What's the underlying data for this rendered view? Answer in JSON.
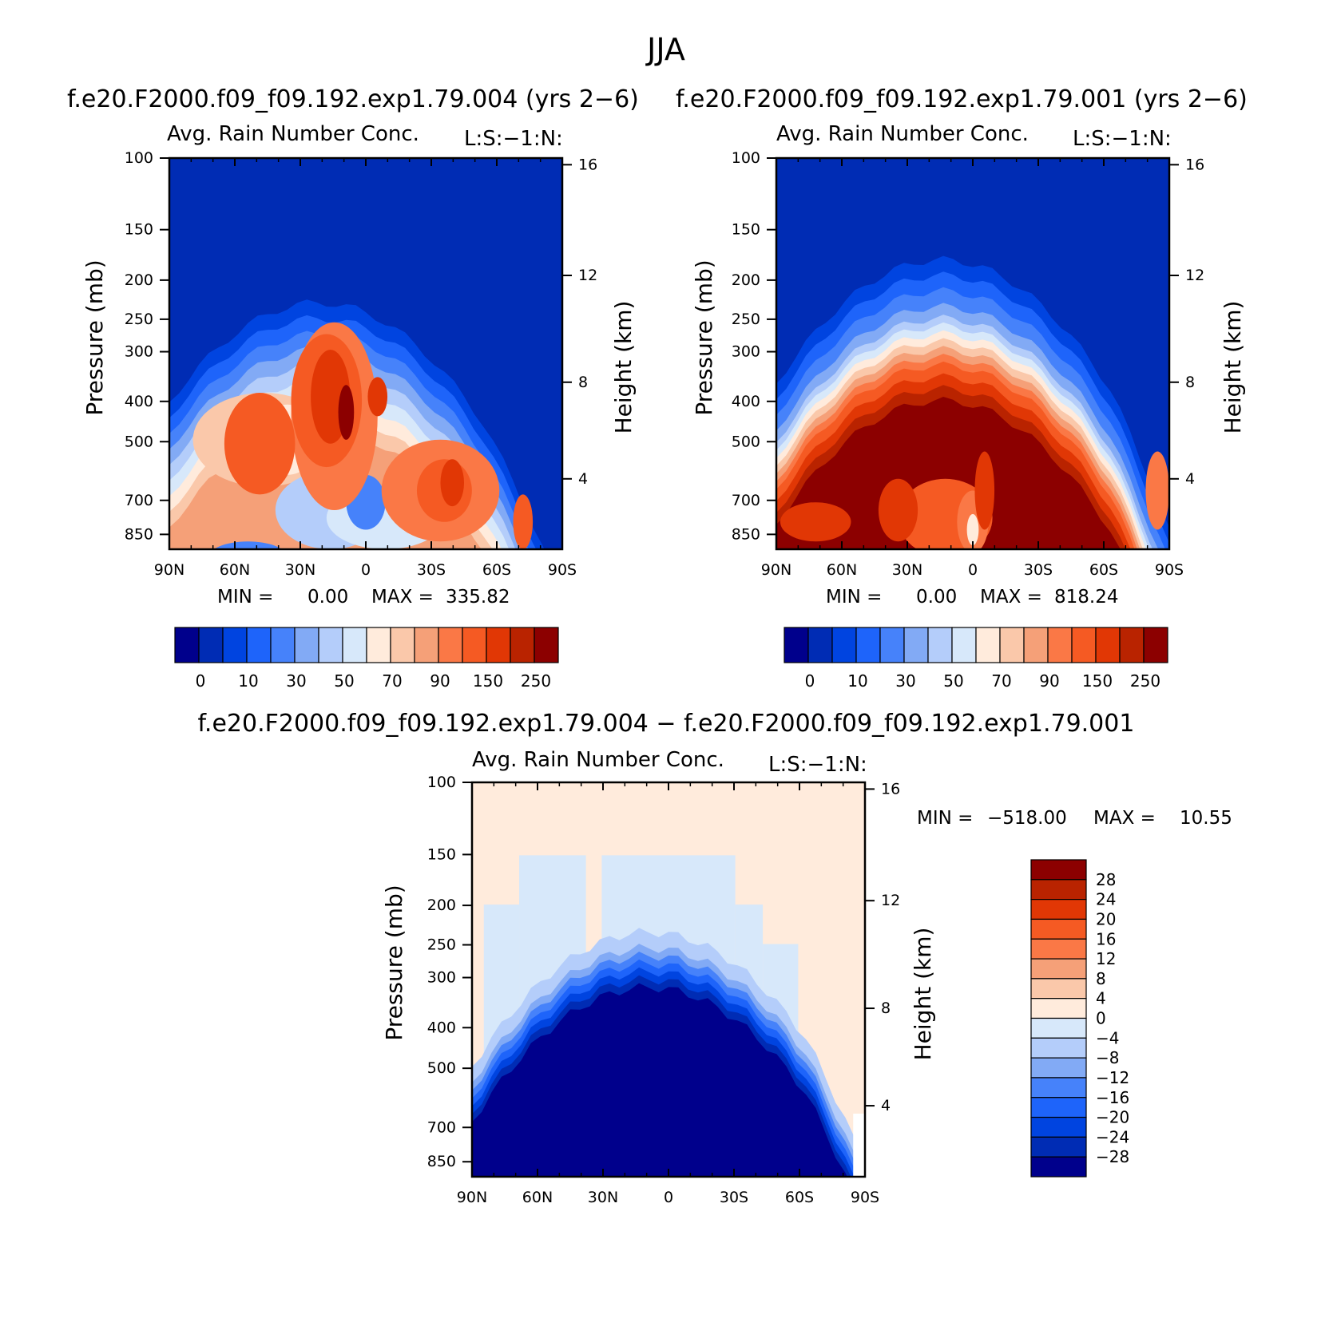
{
  "figure": {
    "title": "JJA"
  },
  "colors": {
    "diverging": [
      "#00008c",
      "#002cb4",
      "#0044e0",
      "#1e64fa",
      "#4682fa",
      "#82aaf5",
      "#b4cdfa",
      "#d7e8fa",
      "#ffebdc",
      "#fac8aa",
      "#f5a078",
      "#fa7846",
      "#f55a23",
      "#e13705",
      "#b92300",
      "#8c0000"
    ]
  },
  "chart_data": [
    {
      "type": "heatmap",
      "panel": "left",
      "title": "f.e20.F2000.f09_f09.192.exp1.79.004 (yrs 2−6)",
      "subtitle": "Avg. Rain Number Conc.",
      "label_right": "L:S:−1:N:",
      "xlabel": "",
      "ylabel": "Pressure (mb)",
      "ylabel_right": "Height (km)",
      "x_ticks": [
        "90N",
        "60N",
        "30N",
        "0",
        "30S",
        "60S",
        "90S"
      ],
      "y_ticks": [
        100,
        150,
        200,
        250,
        300,
        400,
        500,
        700,
        850
      ],
      "y_right_ticks": [
        16,
        12,
        8,
        4
      ],
      "min_label": "MIN =",
      "min_value": "0.00",
      "max_label": "MAX =",
      "max_value": "335.82",
      "colorbar_labels": [
        "0",
        "10",
        "30",
        "50",
        "70",
        "90",
        "150",
        "250"
      ],
      "field_extremes": {
        "min": 0.0,
        "max": 335.82
      }
    },
    {
      "type": "heatmap",
      "panel": "right",
      "title": "f.e20.F2000.f09_f09.192.exp1.79.001 (yrs 2−6)",
      "subtitle": "Avg. Rain Number Conc.",
      "label_right": "L:S:−1:N:",
      "xlabel": "",
      "ylabel": "Pressure (mb)",
      "ylabel_right": "Height (km)",
      "x_ticks": [
        "90N",
        "60N",
        "30N",
        "0",
        "30S",
        "60S",
        "90S"
      ],
      "y_ticks": [
        100,
        150,
        200,
        250,
        300,
        400,
        500,
        700,
        850
      ],
      "y_right_ticks": [
        16,
        12,
        8,
        4
      ],
      "min_label": "MIN =",
      "min_value": "0.00",
      "max_label": "MAX =",
      "max_value": "818.24",
      "colorbar_labels": [
        "0",
        "10",
        "30",
        "50",
        "70",
        "90",
        "150",
        "250"
      ],
      "field_extremes": {
        "min": 0.0,
        "max": 818.24
      }
    },
    {
      "type": "heatmap",
      "panel": "difference",
      "title": "f.e20.F2000.f09_f09.192.exp1.79.004 − f.e20.F2000.f09_f09.192.exp1.79.001",
      "subtitle": "Avg. Rain Number Conc.",
      "label_right": "L:S:−1:N:",
      "xlabel": "",
      "ylabel": "Pressure (mb)",
      "ylabel_right": "Height (km)",
      "x_ticks": [
        "90N",
        "60N",
        "30N",
        "0",
        "30S",
        "60S",
        "90S"
      ],
      "y_ticks": [
        100,
        150,
        200,
        250,
        300,
        400,
        500,
        700,
        850
      ],
      "y_right_ticks": [
        16,
        12,
        8,
        4
      ],
      "min_label": "MIN =",
      "min_value": "−518.00",
      "max_label": "MAX =",
      "max_value": "10.55",
      "colorbar_labels": [
        "28",
        "24",
        "20",
        "16",
        "12",
        "8",
        "4",
        "0",
        "−4",
        "−8",
        "−12",
        "−16",
        "−20",
        "−24",
        "−28"
      ],
      "field_extremes": {
        "min": -518.0,
        "max": 10.55
      }
    }
  ]
}
